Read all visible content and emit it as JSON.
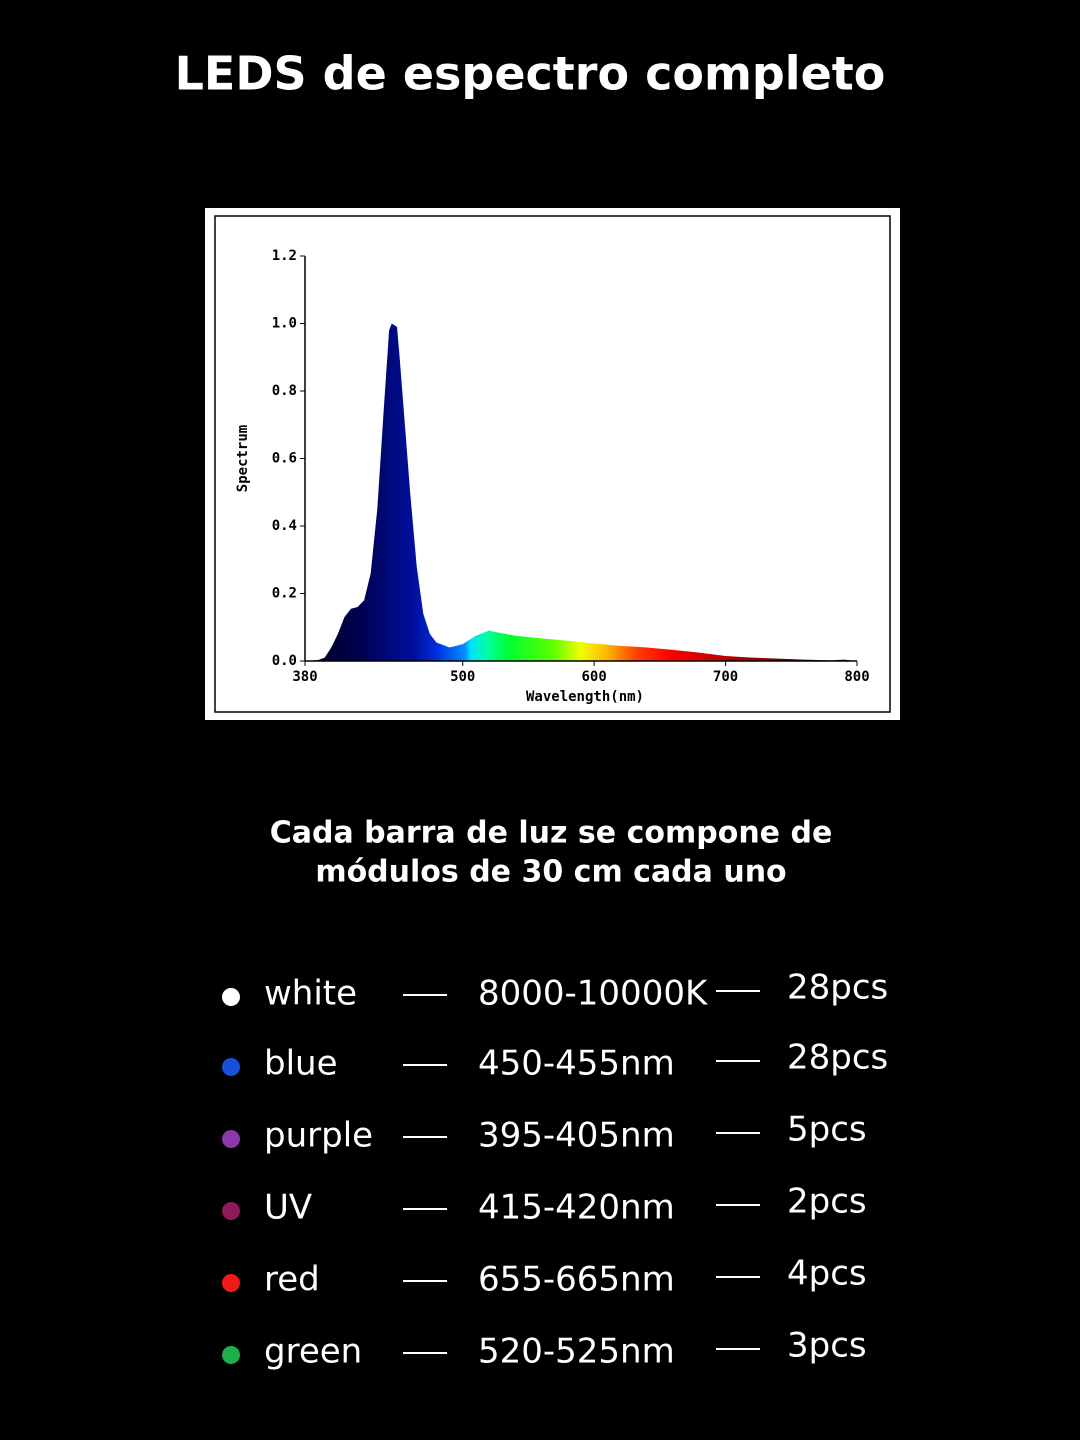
{
  "header": {
    "title": "LEDS de espectro completo"
  },
  "chart_data": {
    "type": "area",
    "xlabel": "Wavelength(nm)",
    "ylabel": "Spectrum",
    "x": [
      380,
      390,
      395,
      400,
      405,
      410,
      415,
      420,
      425,
      430,
      435,
      440,
      444,
      446,
      450,
      452,
      455,
      460,
      465,
      470,
      475,
      480,
      490,
      500,
      510,
      520,
      530,
      540,
      560,
      580,
      600,
      620,
      640,
      660,
      680,
      700,
      720,
      740,
      760,
      780,
      790,
      800
    ],
    "values": [
      0,
      0.003,
      0.01,
      0.04,
      0.08,
      0.13,
      0.155,
      0.16,
      0.18,
      0.26,
      0.45,
      0.75,
      0.98,
      1.0,
      0.99,
      0.9,
      0.75,
      0.5,
      0.28,
      0.14,
      0.08,
      0.055,
      0.04,
      0.05,
      0.075,
      0.09,
      0.082,
      0.075,
      0.067,
      0.06,
      0.052,
      0.045,
      0.04,
      0.033,
      0.025,
      0.015,
      0.01,
      0.007,
      0.004,
      0.002,
      0.004,
      0
    ],
    "xlim": [
      380,
      800
    ],
    "ylim": [
      0,
      1.2
    ],
    "xticks": [
      380,
      500,
      600,
      700,
      800
    ],
    "yticks": [
      {
        "value": 0,
        "label": "0.0"
      },
      0.2,
      0.4,
      0.6,
      0.8,
      {
        "value": 1,
        "label": "1.0"
      },
      1.2
    ]
  },
  "subtitle": [
    "Cada barra de luz se compone de",
    "módulos de 30 cm cada uno"
  ],
  "leds": [
    {
      "name": "white",
      "range": "8000-10000K",
      "count": "28pcs",
      "color": "#ffffff"
    },
    {
      "name": "blue",
      "range": "450-455nm",
      "count": "28pcs",
      "color": "#1a4fd8"
    },
    {
      "name": "purple",
      "range": "395-405nm",
      "count": "5pcs",
      "color": "#8a3aa8"
    },
    {
      "name": "UV",
      "range": "415-420nm",
      "count": "2pcs",
      "color": "#8e1a5a"
    },
    {
      "name": "red",
      "range": "655-665nm",
      "count": "4pcs",
      "color": "#f01a1a"
    },
    {
      "name": "green",
      "range": "520-525nm",
      "count": "3pcs",
      "color": "#1bb04a"
    }
  ]
}
